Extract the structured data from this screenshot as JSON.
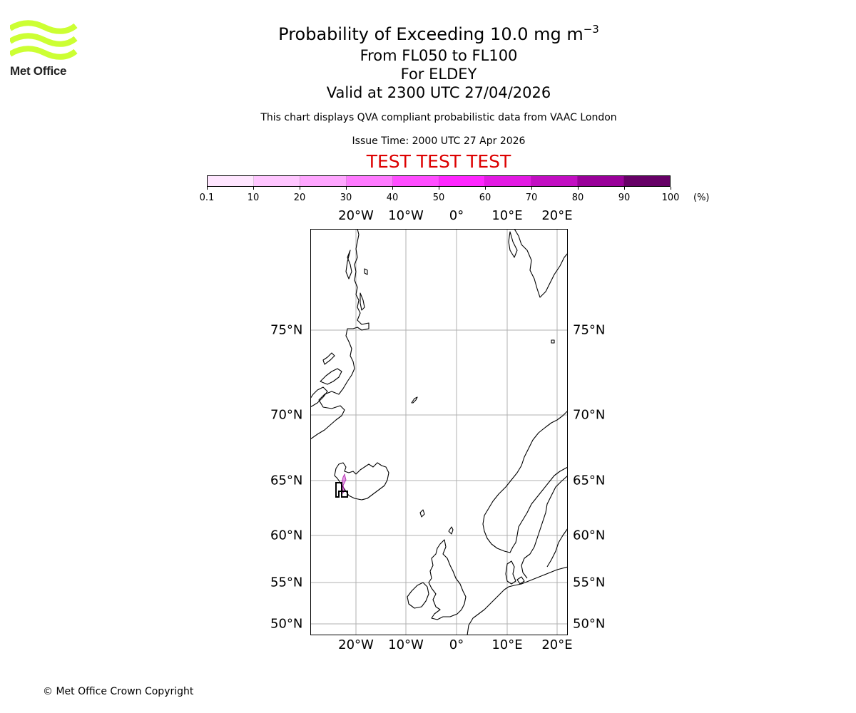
{
  "logo": {
    "text": "Met Office",
    "color": "#ccff33",
    "icon": "met-office-waves-icon"
  },
  "title": {
    "line1_prefix": "Probability of Exceeding 10.0 mg m",
    "line1_exponent": "−3",
    "line2": "From FL050 to FL100",
    "line3": "For ELDEY",
    "line4": "Valid at 2300 UTC 27/04/2026"
  },
  "subtitle": "This chart displays QVA compliant probabilistic data from VAAC London",
  "issue_time": "Issue Time: 2000 UTC 27 Apr 2026",
  "test_banner": {
    "text": "TEST TEST TEST",
    "color": "#dd0000"
  },
  "colorbar": {
    "ticks": [
      "0.1",
      "10",
      "20",
      "30",
      "40",
      "50",
      "60",
      "70",
      "80",
      "90",
      "100"
    ],
    "unit": "(%)",
    "colors": [
      "#ffe6ff",
      "#ffc6ff",
      "#ffa6ff",
      "#ff7aff",
      "#ff4dff",
      "#ff26ff",
      "#e31ae3",
      "#c20ec2",
      "#990099",
      "#660066"
    ]
  },
  "map": {
    "lon_labels": [
      "20°W",
      "10°W",
      "0°",
      "10°E",
      "20°E"
    ],
    "lat_labels": [
      "75°N",
      "70°N",
      "65°N",
      "60°N",
      "55°N",
      "50°N"
    ],
    "grid_color": "#b0b0b0",
    "plume_color": "#cc33cc"
  },
  "copyright": "© Met Office Crown Copyright"
}
